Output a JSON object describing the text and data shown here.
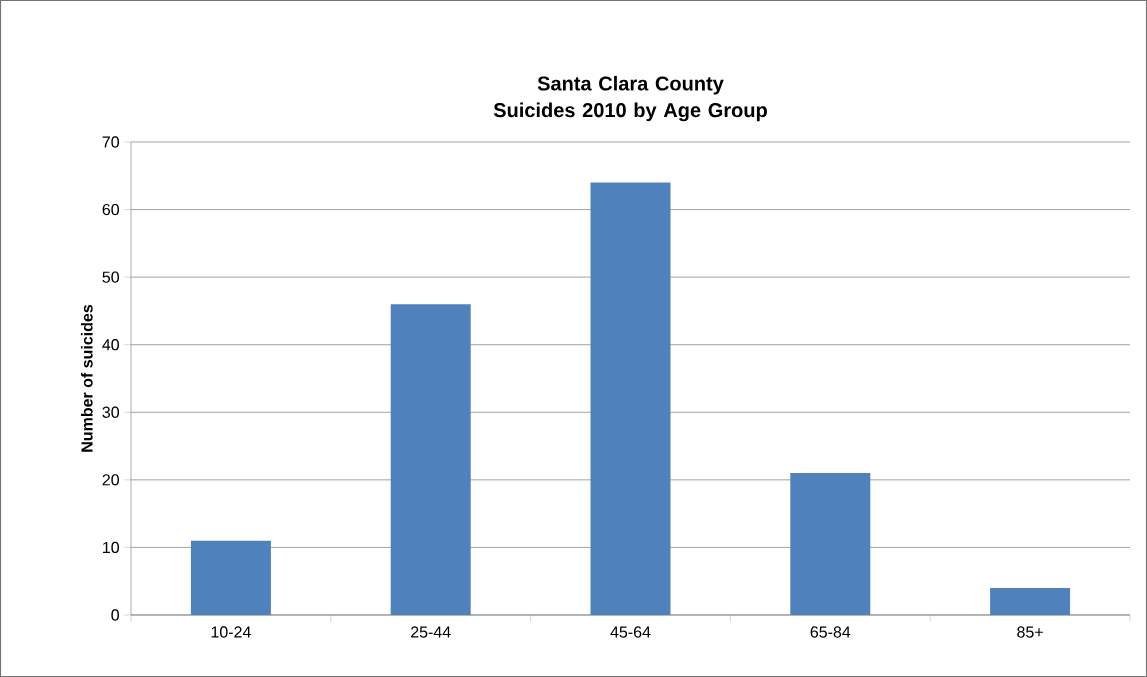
{
  "chart_data": {
    "type": "bar",
    "title": "Santa Clara County Suicides 2010 by Age Group",
    "ylabel": "Number of suicides",
    "categories": [
      "10-24",
      "25-44",
      "45-64",
      "65-84",
      "85+"
    ],
    "values": [
      11,
      46,
      64,
      21,
      4
    ],
    "color": "#4f81bd",
    "ylim": [
      0,
      70
    ],
    "yticks": [
      0,
      10,
      20,
      30,
      40,
      50,
      60,
      70
    ],
    "grid": "y"
  }
}
